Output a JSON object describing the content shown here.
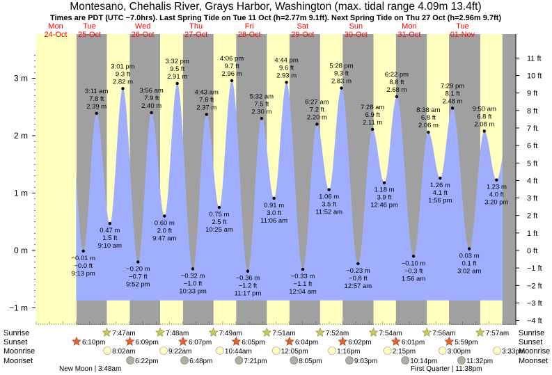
{
  "title": "Montesano, Chehalis River, Grays Harbor, Washington (max. tidal range 4.09m 13.4ft)",
  "subtitle": "Times are PDT (UTC −7.0hrs). Last Spring Tide on Tue 11 Oct (h=2.77m 9.1ft). Next Spring Tide on Thu 27 Oct (h=2.96m 9.7ft)",
  "days": [
    {
      "name": "Mon",
      "date": "24-Oct"
    },
    {
      "name": "Tue",
      "date": "25-Oct"
    },
    {
      "name": "Wed",
      "date": "26-Oct"
    },
    {
      "name": "Thu",
      "date": "27-Oct"
    },
    {
      "name": "Fri",
      "date": "28-Oct"
    },
    {
      "name": "Sat",
      "date": "29-Oct"
    },
    {
      "name": "Sun",
      "date": "30-Oct"
    },
    {
      "name": "Mon",
      "date": "31-Oct"
    },
    {
      "name": "Tue",
      "date": "01-Nov"
    }
  ],
  "row_labels": {
    "sunrise": "Sunrise",
    "sunset": "Sunset",
    "moonrise": "Moonrise",
    "moonset": "Moonset"
  },
  "sunrise": [
    {
      "day": 1,
      "hour": 7.78,
      "time": "7:47am"
    },
    {
      "day": 2,
      "hour": 7.8,
      "time": "7:48am"
    },
    {
      "day": 3,
      "hour": 7.82,
      "time": "7:49am"
    },
    {
      "day": 4,
      "hour": 7.85,
      "time": "7:51am"
    },
    {
      "day": 5,
      "hour": 7.87,
      "time": "7:52am"
    },
    {
      "day": 6,
      "hour": 7.9,
      "time": "7:54am"
    },
    {
      "day": 7,
      "hour": 7.93,
      "time": "7:56am"
    },
    {
      "day": 8,
      "hour": 7.95,
      "time": "7:57am"
    }
  ],
  "sunset": [
    {
      "day": 0,
      "hour": 18.17,
      "time": "6:10pm"
    },
    {
      "day": 1,
      "hour": 18.15,
      "time": "6:09pm"
    },
    {
      "day": 2,
      "hour": 18.12,
      "time": "6:07pm"
    },
    {
      "day": 3,
      "hour": 18.08,
      "time": "6:05pm"
    },
    {
      "day": 4,
      "hour": 18.07,
      "time": "6:04pm"
    },
    {
      "day": 5,
      "hour": 18.03,
      "time": "6:02pm"
    },
    {
      "day": 6,
      "hour": 18.02,
      "time": "6:01pm"
    },
    {
      "day": 7,
      "hour": 17.98,
      "time": "5:59pm"
    }
  ],
  "moonrise": [
    {
      "day": 1,
      "hour": 8.03,
      "time": "8:02am"
    },
    {
      "day": 2,
      "hour": 9.37,
      "time": "9:22am"
    },
    {
      "day": 3,
      "hour": 10.73,
      "time": "10:44am"
    },
    {
      "day": 4,
      "hour": 12.08,
      "time": "12:05pm"
    },
    {
      "day": 5,
      "hour": 13.27,
      "time": "1:16pm"
    },
    {
      "day": 6,
      "hour": 14.25,
      "time": "2:15pm"
    },
    {
      "day": 7,
      "hour": 15.0,
      "time": "3:00pm"
    },
    {
      "day": 8,
      "hour": 15.55,
      "time": "3:33pm"
    }
  ],
  "moonset": [
    {
      "day": 1,
      "hour": 18.37,
      "time": "6:22pm"
    },
    {
      "day": 2,
      "hour": 18.8,
      "time": "6:48pm"
    },
    {
      "day": 3,
      "hour": 19.35,
      "time": "7:21pm"
    },
    {
      "day": 4,
      "hour": 20.08,
      "time": "8:05pm"
    },
    {
      "day": 5,
      "hour": 21.05,
      "time": "9:03pm"
    },
    {
      "day": 6,
      "hour": 22.23,
      "time": "10:14pm"
    },
    {
      "day": 7,
      "hour": 23.53,
      "time": "11:32pm"
    }
  ],
  "moon_phases": [
    {
      "label": "New Moon | 3:48am"
    },
    {
      "label": "First Quarter | 11:38pm"
    }
  ],
  "colors": {
    "day": "#ffffc0",
    "night": "#a0a0a0",
    "water": "#a0aeff",
    "day_label": "#ff0000",
    "sun": "#c8c85a",
    "sunset": "#e06030",
    "moon_rise": "#ffffc0",
    "moon_set": "#b0b0a0"
  },
  "chart_data": {
    "type": "area",
    "title": "Montesano, Chehalis River, Grays Harbor, Washington (max. tidal range 4.09m 13.4ft)",
    "ylabel_left": "m",
    "ylabel_right": "ft",
    "ylim_m": [
      -1.0,
      3.6
    ],
    "x_range_hours": [
      0,
      216
    ],
    "m_ticks": [
      {
        "v": -1,
        "label": "−1 m"
      },
      {
        "v": 0,
        "label": "0 m"
      },
      {
        "v": 1,
        "label": "1 m"
      },
      {
        "v": 2,
        "label": "2 m"
      },
      {
        "v": 3,
        "label": "3 m"
      }
    ],
    "ft_ticks": [
      {
        "v": -4,
        "label": "−4 ft"
      },
      {
        "v": -3,
        "label": "−3 ft"
      },
      {
        "v": -2,
        "label": "−2 ft"
      },
      {
        "v": -1,
        "label": "−1 ft"
      },
      {
        "v": 0,
        "label": "0 ft"
      },
      {
        "v": 1,
        "label": "1 ft"
      },
      {
        "v": 2,
        "label": "2 ft"
      },
      {
        "v": 3,
        "label": "3 ft"
      },
      {
        "v": 4,
        "label": "4 ft"
      },
      {
        "v": 5,
        "label": "5 ft"
      },
      {
        "v": 6,
        "label": "6 ft"
      },
      {
        "v": 7,
        "label": "7 ft"
      },
      {
        "v": 8,
        "label": "8 ft"
      },
      {
        "v": 9,
        "label": "9 ft"
      },
      {
        "v": 10,
        "label": "10 ft"
      },
      {
        "v": 11,
        "label": "11 ft"
      }
    ],
    "extremes": [
      {
        "hour": 21.22,
        "type": "low",
        "m": "−0.01 m",
        "ft": "−0.0 ft",
        "time": "9:13 pm",
        "v": -0.01
      },
      {
        "hour": 27.18,
        "type": "high",
        "m": "2.39 m",
        "ft": "7.8 ft",
        "time": "3:11 am",
        "v": 2.39
      },
      {
        "hour": 33.17,
        "type": "low",
        "m": "0.47 m",
        "ft": "1.5 ft",
        "time": "9:10 am",
        "v": 0.47
      },
      {
        "hour": 39.02,
        "type": "high",
        "m": "2.82 m",
        "ft": "9.3 ft",
        "time": "3:01 pm",
        "v": 2.82
      },
      {
        "hour": 45.87,
        "type": "low",
        "m": "−0.20 m",
        "ft": "−0.7 ft",
        "time": "9:52 pm",
        "v": -0.2
      },
      {
        "hour": 51.93,
        "type": "high",
        "m": "2.40 m",
        "ft": "7.9 ft",
        "time": "3:56 am",
        "v": 2.4
      },
      {
        "hour": 57.78,
        "type": "low",
        "m": "0.60 m",
        "ft": "2.0 ft",
        "time": "9:47 am",
        "v": 0.6
      },
      {
        "hour": 63.53,
        "type": "high",
        "m": "2.91 m",
        "ft": "9.5 ft",
        "time": "3:32 pm",
        "v": 2.91
      },
      {
        "hour": 70.55,
        "type": "low",
        "m": "−0.32 m",
        "ft": "−1.0 ft",
        "time": "10:33 pm",
        "v": -0.32
      },
      {
        "hour": 76.72,
        "type": "high",
        "m": "2.37 m",
        "ft": "7.8 ft",
        "time": "4:43 am",
        "v": 2.37
      },
      {
        "hour": 82.42,
        "type": "low",
        "m": "0.75 m",
        "ft": "2.5 ft",
        "time": "10:25 am",
        "v": 0.75
      },
      {
        "hour": 88.1,
        "type": "high",
        "m": "2.96 m",
        "ft": "9.7 ft",
        "time": "4:06 pm",
        "v": 2.96
      },
      {
        "hour": 95.28,
        "type": "low",
        "m": "−0.36 m",
        "ft": "−1.2 ft",
        "time": "11:17 pm",
        "v": -0.36
      },
      {
        "hour": 101.53,
        "type": "high",
        "m": "2.30 m",
        "ft": "7.5 ft",
        "time": "5:32 am",
        "v": 2.3
      },
      {
        "hour": 107.1,
        "type": "low",
        "m": "0.91 m",
        "ft": "3.0 ft",
        "time": "11:06 am",
        "v": 0.91
      },
      {
        "hour": 112.73,
        "type": "high",
        "m": "2.93 m",
        "ft": "9.6 ft",
        "time": "4:44 pm",
        "v": 2.93
      },
      {
        "hour": 120.07,
        "type": "low",
        "m": "−0.33 m",
        "ft": "−1.1 ft",
        "time": "12:04 am",
        "v": -0.33
      },
      {
        "hour": 126.45,
        "type": "high",
        "m": "2.20 m",
        "ft": "7.2 ft",
        "time": "6:27 am",
        "v": 2.2
      },
      {
        "hour": 131.87,
        "type": "low",
        "m": "1.06 m",
        "ft": "3.5 ft",
        "time": "11:52 am",
        "v": 1.06
      },
      {
        "hour": 137.47,
        "type": "high",
        "m": "2.83 m",
        "ft": "9.3 ft",
        "time": "5:28 pm",
        "v": 2.83
      },
      {
        "hour": 144.95,
        "type": "low",
        "m": "−0.23 m",
        "ft": "−0.8 ft",
        "time": "12:57 am",
        "v": -0.23
      },
      {
        "hour": 151.47,
        "type": "high",
        "m": "2.11 m",
        "ft": "6.9 ft",
        "time": "7:28 am",
        "v": 2.11
      },
      {
        "hour": 156.77,
        "type": "low",
        "m": "1.18 m",
        "ft": "3.9 ft",
        "time": "12:46 pm",
        "v": 1.18
      },
      {
        "hour": 162.37,
        "type": "high",
        "m": "2.68 m",
        "ft": "8.8 ft",
        "time": "6:22 pm",
        "v": 2.68
      },
      {
        "hour": 169.93,
        "type": "low",
        "m": "−0.10 m",
        "ft": "−0.3 ft",
        "time": "1:56 am",
        "v": -0.1
      },
      {
        "hour": 176.63,
        "type": "high",
        "m": "2.06 m",
        "ft": "6.8 ft",
        "time": "8:38 am",
        "v": 2.06
      },
      {
        "hour": 181.93,
        "type": "low",
        "m": "1.26 m",
        "ft": "4.1 ft",
        "time": "1:56 pm",
        "v": 1.26
      },
      {
        "hour": 187.48,
        "type": "high",
        "m": "2.48 m",
        "ft": "8.1 ft",
        "time": "7:29 pm",
        "v": 2.48
      },
      {
        "hour": 195.03,
        "type": "low",
        "m": "0.03 m",
        "ft": "0.1 ft",
        "time": "3:02 am",
        "v": 0.03
      },
      {
        "hour": 201.83,
        "type": "high",
        "m": "2.08 m",
        "ft": "6.8 ft",
        "time": "9:50 am",
        "v": 2.08
      },
      {
        "hour": 207.33,
        "type": "low",
        "m": "1.23 m",
        "ft": "4.0 ft",
        "time": "3:20 pm",
        "v": 1.23
      }
    ]
  }
}
